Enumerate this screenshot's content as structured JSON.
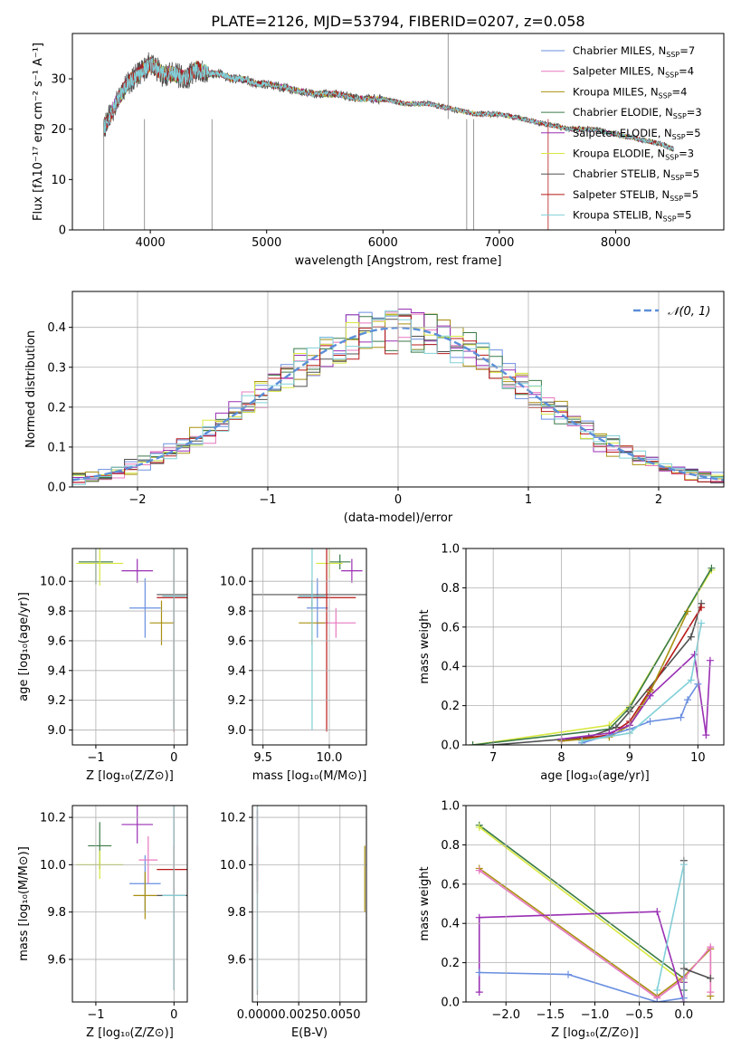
{
  "title": "PLATE=2126, MJD=53794, FIBERID=0207, z=0.058",
  "series_colors": [
    "#6a8fe0",
    "#e878c0",
    "#a89010",
    "#3a7a48",
    "#9a2fb4",
    "#d8e840",
    "#505050",
    "#b81818",
    "#80d0d8"
  ],
  "legend": [
    {
      "text": "Chabrier MILES, N",
      "sub": "SSP",
      "suffix": "=7",
      "color": "#6a8fe0"
    },
    {
      "text": "Salpeter MILES, N",
      "sub": "SSP",
      "suffix": "=4",
      "color": "#e878c0"
    },
    {
      "text": "Kroupa MILES, N",
      "sub": "SSP",
      "suffix": "=4",
      "color": "#a89010"
    },
    {
      "text": "Chabrier ELODIE, N",
      "sub": "SSP",
      "suffix": "=3",
      "color": "#3a7a48"
    },
    {
      "text": "Salpeter ELODIE, N",
      "sub": "SSP",
      "suffix": "=5",
      "color": "#9a2fb4"
    },
    {
      "text": "Kroupa ELODIE, N",
      "sub": "SSP",
      "suffix": "=3",
      "color": "#d8e840"
    },
    {
      "text": "Chabrier STELIB, N",
      "sub": "SSP",
      "suffix": "=5",
      "color": "#505050"
    },
    {
      "text": "Salpeter STELIB, N",
      "sub": "SSP",
      "suffix": "=5",
      "color": "#b81818"
    },
    {
      "text": "Kroupa STELIB, N",
      "sub": "SSP",
      "suffix": "=5",
      "color": "#80d0d8"
    }
  ],
  "chart_data": [
    {
      "id": "spectrum",
      "type": "line",
      "xlabel": "wavelength [Angstrom, rest frame]",
      "ylabel": "Flux [fλ10⁻¹⁷ erg cm⁻² s⁻¹ A⁻¹]",
      "xlim": [
        3330,
        8930
      ],
      "ylim": [
        0,
        39
      ],
      "xticks": [
        "4000",
        "5000",
        "6000",
        "7000",
        "8000"
      ],
      "yticks": [
        "0",
        "10",
        "20",
        "30"
      ],
      "grid": false,
      "legend_placement": "top-right",
      "x": [
        3600,
        3700,
        3800,
        3900,
        4000,
        4100,
        4200,
        4300,
        4400,
        4500,
        4600,
        4700,
        4800,
        4900,
        5000,
        5200,
        5400,
        5600,
        5800,
        6000,
        6200,
        6400,
        6600,
        6800,
        7000,
        7200,
        7400,
        7600,
        7800,
        8000,
        8200,
        8400,
        8500
      ],
      "y": [
        20,
        25,
        29,
        31,
        33,
        31,
        31,
        30,
        32,
        31,
        31,
        30,
        30,
        29,
        29,
        28,
        27,
        27,
        26,
        26,
        25,
        25,
        24,
        23,
        23,
        22,
        21,
        20,
        20,
        19,
        18,
        17,
        16
      ]
    },
    {
      "id": "residuals",
      "type": "histogram",
      "xlabel": "(data-model)/error",
      "ylabel": "Normed distribution",
      "xlim": [
        -2.5,
        2.5
      ],
      "ylim": [
        0,
        0.49
      ],
      "xticks": [
        "−2",
        "−1",
        "0",
        "1",
        "2"
      ],
      "yticks": [
        "0.0",
        "0.1",
        "0.2",
        "0.3",
        "0.4"
      ],
      "grid": true,
      "legend_placement": "top-right",
      "legend": "𝒩(0, 1)",
      "bin_width": 0.1
    },
    {
      "id": "age_vs_Z",
      "type": "errorbar",
      "xlabel": "Z [log₁₀(Z/Z⊙)]",
      "ylabel": "age  [log₁₀(age/yr)]",
      "xlim": [
        -1.3,
        0.17
      ],
      "ylim": [
        8.9,
        10.22
      ],
      "xticks": [
        "−1",
        "0"
      ],
      "yticks": [
        "9.0",
        "9.2",
        "9.4",
        "9.6",
        "9.8",
        "10.0"
      ],
      "grid": true,
      "points": [
        {
          "x": -0.37,
          "y": 9.82,
          "xerr": 0.2,
          "yerr": 0.2,
          "c": 0
        },
        {
          "x": -0.16,
          "y": 9.72,
          "xerr": 0.15,
          "yerr": 0.15,
          "c": 2
        },
        {
          "x": -1.0,
          "y": 10.13,
          "xerr": 0.22,
          "yerr": 0.15,
          "c": 3
        },
        {
          "x": -0.47,
          "y": 10.07,
          "xerr": 0.2,
          "yerr": 0.08,
          "c": 4
        },
        {
          "x": -0.95,
          "y": 10.12,
          "xerr": 0.3,
          "yerr": 0.15,
          "c": 5
        },
        {
          "x": 0.0,
          "y": 9.91,
          "xerr": 0.22,
          "yerr": 0.9,
          "c": 6
        },
        {
          "x": 0.0,
          "y": 9.89,
          "xerr": 0.22,
          "yerr": 0.9,
          "c": 7
        },
        {
          "x": 0.0,
          "y": 9.9,
          "xerr": 0.15,
          "yerr": 0.9,
          "c": 8
        }
      ]
    },
    {
      "id": "age_vs_mass",
      "type": "errorbar",
      "xlabel": "mass [log₁₀(M/M⊙)]",
      "ylabel": "",
      "xlim": [
        9.42,
        10.28
      ],
      "ylim": [
        8.9,
        10.22
      ],
      "xticks": [
        "9.5",
        "10.0"
      ],
      "yticks": [
        "9.0",
        "9.2",
        "9.4",
        "9.6",
        "9.8",
        "10.0"
      ],
      "grid": true,
      "points": [
        {
          "x": 9.91,
          "y": 9.82,
          "xerr": 0.08,
          "yerr": 0.2,
          "c": 0
        },
        {
          "x": 10.05,
          "y": 9.72,
          "xerr": 0.15,
          "yerr": 0.1,
          "c": 1
        },
        {
          "x": 9.87,
          "y": 9.72,
          "xerr": 0.1,
          "yerr": 0.15,
          "c": 2
        },
        {
          "x": 10.08,
          "y": 10.13,
          "xerr": 0.08,
          "yerr": 0.05,
          "c": 3
        },
        {
          "x": 10.17,
          "y": 10.07,
          "xerr": 0.08,
          "yerr": 0.08,
          "c": 4
        },
        {
          "x": 10.0,
          "y": 10.12,
          "xerr": 0.1,
          "yerr": 0.1,
          "c": 5
        },
        {
          "x": 9.87,
          "y": 9.91,
          "xerr": 0.45,
          "yerr": 0.1,
          "c": 6
        },
        {
          "x": 9.98,
          "y": 9.89,
          "xerr": 0.22,
          "yerr": 0.9,
          "c": 7
        },
        {
          "x": 9.87,
          "y": 9.9,
          "xerr": 0.1,
          "yerr": 0.9,
          "c": 8
        }
      ]
    },
    {
      "id": "massweight_vs_age",
      "type": "line",
      "xlabel": "age  [log₁₀(age/yr)]",
      "ylabel": "mass weight",
      "xlim": [
        6.6,
        10.38
      ],
      "ylim": [
        0,
        1
      ],
      "xticks": [
        "7",
        "8",
        "9",
        "10"
      ],
      "yticks": [
        "0.0",
        "0.2",
        "0.4",
        "0.6",
        "0.8",
        "1.0"
      ],
      "grid": true,
      "series": [
        {
          "c": 5,
          "x": [
            6.7,
            8.7,
            9.0,
            10.2
          ],
          "y": [
            0.0,
            0.1,
            0.2,
            0.89
          ]
        },
        {
          "c": 3,
          "x": [
            6.7,
            8.7,
            9.0,
            10.2
          ],
          "y": [
            0.0,
            0.08,
            0.19,
            0.9
          ]
        },
        {
          "c": 6,
          "x": [
            7.0,
            8.4,
            8.8,
            9.0,
            9.9,
            10.05
          ],
          "y": [
            0.0,
            0.04,
            0.09,
            0.17,
            0.55,
            0.72
          ]
        },
        {
          "c": 7,
          "x": [
            8.0,
            8.7,
            9.0,
            9.3,
            10.05
          ],
          "y": [
            0.02,
            0.05,
            0.12,
            0.28,
            0.7
          ]
        },
        {
          "c": 2,
          "x": [
            8.0,
            8.7,
            9.0,
            9.3,
            9.85
          ],
          "y": [
            0.02,
            0.04,
            0.1,
            0.27,
            0.68
          ]
        },
        {
          "c": 4,
          "x": [
            8.0,
            8.7,
            9.0,
            9.3,
            9.95,
            10.12,
            10.18
          ],
          "y": [
            0.03,
            0.06,
            0.1,
            0.25,
            0.46,
            0.05,
            0.43
          ]
        },
        {
          "c": 0,
          "x": [
            8.3,
            9.0,
            9.3,
            9.75,
            9.85,
            10.0
          ],
          "y": [
            0.01,
            0.08,
            0.12,
            0.14,
            0.23,
            0.31
          ]
        },
        {
          "c": 8,
          "x": [
            8.3,
            9.0,
            9.9,
            10.05
          ],
          "y": [
            0.02,
            0.06,
            0.33,
            0.62
          ]
        }
      ]
    },
    {
      "id": "mass_vs_Z",
      "type": "errorbar",
      "xlabel": "Z [log₁₀(Z/Z⊙)]",
      "ylabel": "mass [log₁₀(M/M⊙)]",
      "xlim": [
        -1.3,
        0.17
      ],
      "ylim": [
        9.42,
        10.25
      ],
      "xticks": [
        "−1",
        "0"
      ],
      "yticks": [
        "9.6",
        "9.8",
        "10.0",
        "10.2"
      ],
      "grid": true,
      "points": [
        {
          "x": -0.37,
          "y": 9.92,
          "xerr": 0.2,
          "yerr": 0.12,
          "c": 0
        },
        {
          "x": -0.33,
          "y": 10.02,
          "xerr": 0.12,
          "yerr": 0.1,
          "c": 1
        },
        {
          "x": -0.37,
          "y": 9.87,
          "xerr": 0.15,
          "yerr": 0.1,
          "c": 2
        },
        {
          "x": -0.95,
          "y": 10.08,
          "xerr": 0.15,
          "yerr": 0.1,
          "c": 3
        },
        {
          "x": -0.47,
          "y": 10.17,
          "xerr": 0.2,
          "yerr": 0.08,
          "c": 4
        },
        {
          "x": -0.95,
          "y": 10.0,
          "xerr": 0.3,
          "yerr": 0.06,
          "c": 5
        },
        {
          "x": 0.0,
          "y": 9.87,
          "xerr": 0.22,
          "yerr": 0.4,
          "c": 6
        },
        {
          "x": 0.0,
          "y": 9.98,
          "xerr": 0.22,
          "yerr": 0.1,
          "c": 7
        },
        {
          "x": 0.0,
          "y": 9.87,
          "xerr": 0.15,
          "yerr": 0.4,
          "c": 8
        }
      ]
    },
    {
      "id": "mass_vs_EBV",
      "type": "errorbar",
      "xlabel": "E(B-V)",
      "ylabel": "",
      "xlim": [
        -0.0003,
        0.0066
      ],
      "ylim": [
        9.42,
        10.25
      ],
      "xticks": [
        "0.0000",
        "0.0025",
        "0.0050"
      ],
      "yticks": [
        "9.6",
        "9.8",
        "10.0",
        "10.2"
      ],
      "grid": true,
      "points": [
        {
          "x": 0.0,
          "y": 10.08,
          "xerr": 0,
          "yerr": 0.15,
          "c": 4
        },
        {
          "x": 0.0,
          "y": 9.98,
          "xerr": 0,
          "yerr": 0.1,
          "c": 7
        },
        {
          "x": 0.0,
          "y": 9.87,
          "xerr": 0,
          "yerr": 0.42,
          "c": 6
        },
        {
          "x": 0.0065,
          "y": 9.94,
          "xerr": 0,
          "yerr": 0.14,
          "c": 2
        },
        {
          "x": 0.0,
          "y": 9.87,
          "xerr": 0,
          "yerr": 0.4,
          "c": 8
        }
      ]
    },
    {
      "id": "massweight_vs_Z",
      "type": "line",
      "xlabel": "Z [log₁₀(Z/Z⊙)]",
      "ylabel": "mass weight",
      "xlim": [
        -2.45,
        0.45
      ],
      "ylim": [
        0,
        1
      ],
      "xticks": [
        "−2.0",
        "−1.5",
        "−1.0",
        "−0.5",
        "0.0"
      ],
      "yticks": [
        "0.0",
        "0.2",
        "0.4",
        "0.6",
        "0.8",
        "1.0"
      ],
      "grid": true,
      "series": [
        {
          "c": 3,
          "x": [
            -2.3,
            0.0,
            0.0
          ],
          "y": [
            0.9,
            0.12,
            0.06
          ]
        },
        {
          "c": 5,
          "x": [
            -2.3,
            0.0,
            0.0
          ],
          "y": [
            0.89,
            0.1,
            0.2
          ]
        },
        {
          "c": 2,
          "x": [
            -2.3,
            -0.3,
            0.0,
            0.3,
            0.3
          ],
          "y": [
            0.68,
            0.03,
            0.13,
            0.27,
            0.03
          ]
        },
        {
          "c": 1,
          "x": [
            -2.3,
            -0.3,
            0.0,
            0.3,
            0.3
          ],
          "y": [
            0.67,
            0.02,
            0.12,
            0.28,
            0.05
          ]
        },
        {
          "c": 4,
          "x": [
            -2.3,
            -2.3,
            -0.3,
            0.0,
            0.0
          ],
          "y": [
            0.05,
            0.43,
            0.46,
            0.0,
            0.1
          ]
        },
        {
          "c": 0,
          "x": [
            -2.3,
            -1.3,
            -0.3,
            0.0,
            0.0
          ],
          "y": [
            0.15,
            0.14,
            0.0,
            0.02,
            0.2
          ]
        },
        {
          "c": 6,
          "x": [
            0.0,
            0.0,
            0.3
          ],
          "y": [
            0.72,
            0.17,
            0.12
          ]
        },
        {
          "c": 8,
          "x": [
            -0.3,
            0.0,
            0.0
          ],
          "y": [
            0.06,
            0.7,
            0.2
          ]
        }
      ]
    }
  ]
}
